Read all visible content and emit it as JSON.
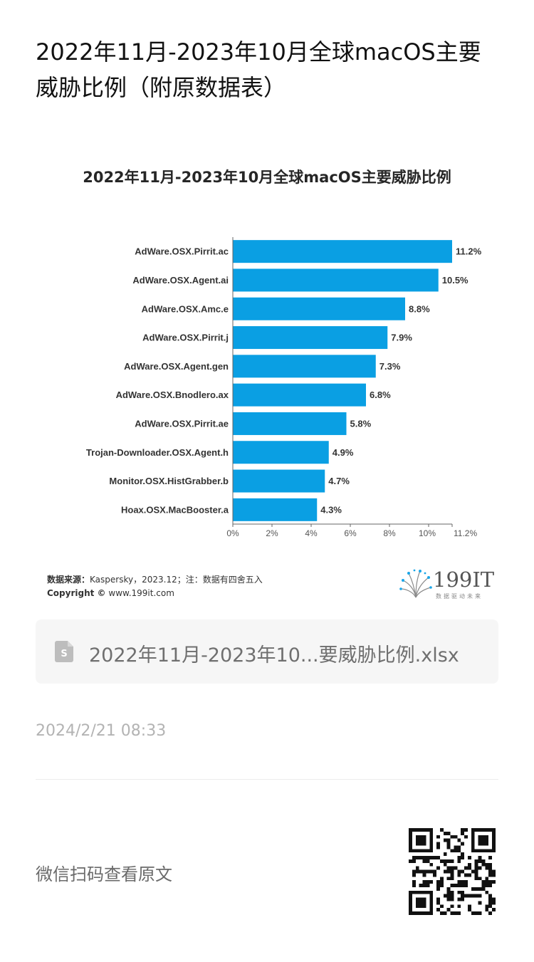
{
  "article": {
    "title": "2022年11月-2023年10月全球macOS主要威胁比例（附原数据表）"
  },
  "chart_data": {
    "type": "bar",
    "orientation": "horizontal",
    "title": "2022年11月-2023年10月全球macOS主要威胁比例",
    "categories": [
      "AdWare.OSX.Pirrit.ac",
      "AdWare.OSX.Agent.ai",
      "AdWare.OSX.Amc.e",
      "AdWare.OSX.Pirrit.j",
      "AdWare.OSX.Agent.gen",
      "AdWare.OSX.Bnodlero.ax",
      "AdWare.OSX.Pirrit.ae",
      "Trojan-Downloader.OSX.Agent.h",
      "Monitor.OSX.HistGrabber.b",
      "Hoax.OSX.MacBooster.a"
    ],
    "values": [
      11.2,
      10.5,
      8.8,
      7.9,
      7.3,
      6.8,
      5.8,
      4.9,
      4.7,
      4.3
    ],
    "value_labels": [
      "11.2%",
      "10.5%",
      "8.8%",
      "7.9%",
      "7.3%",
      "6.8%",
      "5.8%",
      "4.9%",
      "4.7%",
      "4.3%"
    ],
    "x_ticks": [
      0,
      2,
      4,
      6,
      8,
      10,
      11.2
    ],
    "x_tick_labels": [
      "0%",
      "2%",
      "4%",
      "6%",
      "8%",
      "10%",
      "11.2%"
    ],
    "xlim": [
      0,
      11.2
    ],
    "bar_color": "#0a9fe3",
    "grid": false,
    "legend": "none"
  },
  "source": {
    "label": "数据来源：",
    "text": "Kaspersky，2023.12；注：数据有四舍五入",
    "copyright_label": "Copyright ©",
    "copyright_text": "www.199it.com"
  },
  "brand": {
    "name": "199IT",
    "slogan": "数据驱动未来"
  },
  "attachment": {
    "file_name": "2022年11月-2023年10...要威胁比例.xlsx",
    "icon": "spreadsheet-file-icon"
  },
  "meta": {
    "timestamp": "2024/2/21 08:33"
  },
  "footer": {
    "qr_hint": "微信扫码查看原文",
    "qr_icon": "qr-code-icon"
  }
}
